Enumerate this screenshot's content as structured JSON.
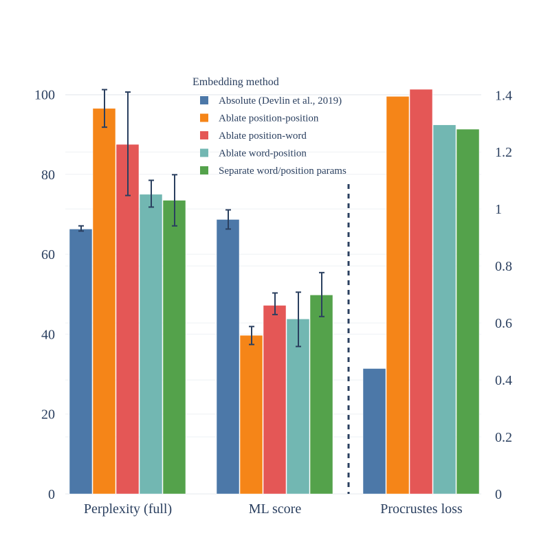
{
  "chart_data": {
    "type": "bar",
    "legend": {
      "title": "Embedding method",
      "placement": "top-center"
    },
    "series": [
      {
        "name": "Absolute (Devlin et al., 2019)",
        "color": "#4c78a8"
      },
      {
        "name": "Ablate position-position",
        "color": "#f58518"
      },
      {
        "name": "Ablate position-word",
        "color": "#e45756"
      },
      {
        "name": "Ablate word-position",
        "color": "#72b7b2"
      },
      {
        "name": "Separate word/position params",
        "color": "#54a24b"
      }
    ],
    "left_axis": {
      "range": [
        0,
        103
      ],
      "ticks": [
        0,
        20,
        40,
        60,
        80,
        100
      ],
      "tick_labels": [
        "0",
        "20",
        "40",
        "60",
        "80",
        "100"
      ]
    },
    "right_axis": {
      "range": [
        0,
        1.444
      ],
      "ticks": [
        0,
        0.2,
        0.4,
        0.6,
        0.8,
        1,
        1.2,
        1.4
      ],
      "tick_labels": [
        "0",
        "0.2",
        "0.4",
        "0.6",
        "0.8",
        "1",
        "1.2",
        "1.4"
      ]
    },
    "groups": [
      {
        "label": "Perplexity (full)",
        "axis": "left",
        "values": [
          66.3,
          96.5,
          87.5,
          75.0,
          73.5
        ],
        "error_low": [
          65.8,
          91.8,
          74.7,
          71.8,
          67.1
        ],
        "error_high": [
          67.1,
          101.2,
          100.6,
          78.5,
          79.9
        ]
      },
      {
        "label": "ML score",
        "axis": "left",
        "values": [
          68.7,
          39.7,
          47.2,
          43.8,
          49.8
        ],
        "error_low": [
          66.3,
          37.4,
          44.9,
          36.9,
          44.4
        ],
        "error_high": [
          71.1,
          41.9,
          50.3,
          50.5,
          55.4
        ]
      },
      {
        "label": "Procrustes loss",
        "axis": "right",
        "values": [
          0.44,
          1.395,
          1.46,
          1.295,
          1.28
        ],
        "error_low": [],
        "error_high": []
      }
    ],
    "separator": "dashed vertical line between ML score and Procrustes loss"
  }
}
